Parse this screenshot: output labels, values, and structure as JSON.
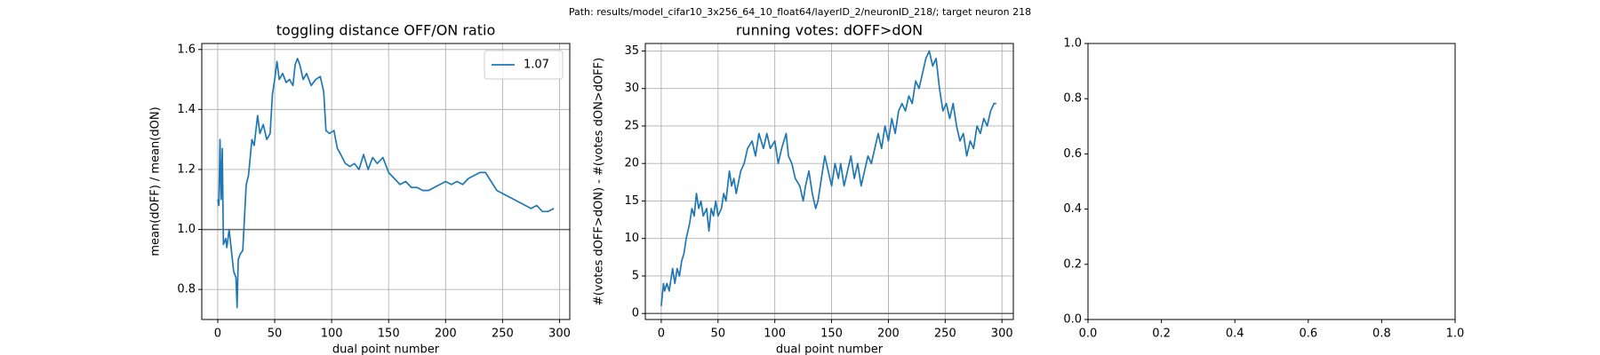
{
  "title": "Path: results/model_cifar10_3x256_64_10_float64/layerID_2/neuronID_218/; target neuron 218",
  "chart_data": [
    {
      "type": "line",
      "title": "toggling distance OFF/ON ratio",
      "xlabel": "dual point number",
      "ylabel": "mean(dOFF) / mean(dON)",
      "x": [
        0,
        1,
        2,
        3,
        4,
        5,
        7,
        8,
        10,
        12,
        14,
        16,
        17,
        18,
        20,
        22,
        25,
        27,
        30,
        32,
        35,
        37,
        40,
        43,
        46,
        48,
        50,
        52,
        54,
        57,
        60,
        63,
        66,
        68,
        70,
        72,
        75,
        78,
        82,
        86,
        90,
        93,
        95,
        98,
        102,
        105,
        108,
        112,
        116,
        120,
        124,
        128,
        132,
        136,
        140,
        145,
        150,
        155,
        160,
        165,
        170,
        175,
        180,
        185,
        190,
        195,
        200,
        205,
        210,
        215,
        220,
        225,
        230,
        235,
        240,
        245,
        250,
        255,
        260,
        265,
        270,
        275,
        280,
        285,
        290,
        295
      ],
      "series": [
        {
          "name": "1.07",
          "color": "#1f77b4",
          "values": [
            1.1,
            1.08,
            1.3,
            1.1,
            1.27,
            0.95,
            0.97,
            0.94,
            1.0,
            0.93,
            0.86,
            0.84,
            0.74,
            0.9,
            0.92,
            0.93,
            1.15,
            1.18,
            1.3,
            1.28,
            1.38,
            1.32,
            1.35,
            1.3,
            1.32,
            1.45,
            1.5,
            1.56,
            1.5,
            1.52,
            1.49,
            1.5,
            1.48,
            1.55,
            1.57,
            1.55,
            1.5,
            1.52,
            1.48,
            1.5,
            1.51,
            1.46,
            1.33,
            1.32,
            1.33,
            1.27,
            1.25,
            1.22,
            1.21,
            1.22,
            1.2,
            1.25,
            1.2,
            1.24,
            1.22,
            1.24,
            1.19,
            1.17,
            1.15,
            1.16,
            1.14,
            1.14,
            1.13,
            1.13,
            1.14,
            1.15,
            1.16,
            1.15,
            1.16,
            1.15,
            1.17,
            1.18,
            1.19,
            1.19,
            1.16,
            1.13,
            1.12,
            1.11,
            1.1,
            1.09,
            1.08,
            1.07,
            1.08,
            1.06,
            1.06,
            1.07
          ]
        }
      ],
      "xlim": [
        -14,
        309
      ],
      "xticks": [
        0,
        50,
        100,
        150,
        200,
        250,
        300
      ],
      "ylim": [
        0.7,
        1.62
      ],
      "yticks": [
        0.8,
        {
          "value": 1,
          "label": "1.0"
        },
        1.2,
        1.4,
        1.6
      ],
      "hline": 1,
      "grid": true,
      "legend": "upper right"
    },
    {
      "type": "line",
      "title": "running votes: dOFF>dON",
      "xlabel": "dual point number",
      "ylabel": "#(votes dOFF>dON) - #(votes dON>dOFF)",
      "x": [
        0,
        2,
        3,
        5,
        7,
        9,
        10,
        12,
        14,
        16,
        18,
        20,
        22,
        25,
        27,
        29,
        31,
        33,
        35,
        37,
        40,
        42,
        44,
        46,
        48,
        50,
        53,
        55,
        57,
        60,
        62,
        64,
        66,
        70,
        73,
        76,
        80,
        83,
        86,
        90,
        93,
        96,
        100,
        103,
        106,
        110,
        112,
        115,
        118,
        122,
        125,
        127,
        130,
        133,
        136,
        138,
        141,
        144,
        147,
        150,
        153,
        156,
        158,
        161,
        164,
        167,
        170,
        173,
        176,
        179,
        182,
        185,
        188,
        191,
        194,
        197,
        200,
        203,
        206,
        209,
        212,
        215,
        218,
        221,
        224,
        227,
        230,
        233,
        236,
        239,
        242,
        245,
        248,
        251,
        254,
        257,
        260,
        263,
        266,
        269,
        272,
        275,
        278,
        281,
        284,
        287,
        290,
        293,
        295
      ],
      "series": [
        {
          "color": "#1f77b4",
          "values": [
            1,
            4,
            3,
            4,
            3,
            5,
            6,
            4,
            6,
            5,
            7,
            8,
            10,
            12,
            14,
            13,
            16,
            14,
            15,
            13,
            14,
            11,
            14,
            13,
            15,
            13,
            14,
            16,
            15,
            19,
            17,
            18,
            16,
            19,
            20,
            22,
            23,
            21,
            24,
            22,
            24,
            22,
            23,
            20,
            22,
            24,
            21,
            20,
            18,
            17,
            15,
            17,
            19,
            16,
            14,
            15,
            18,
            21,
            19,
            17,
            20,
            18,
            20,
            17,
            19,
            21,
            18,
            20,
            17,
            19,
            21,
            20,
            22,
            24,
            22,
            25,
            23,
            26,
            24,
            27,
            28,
            27,
            29,
            28,
            31,
            30,
            32,
            34,
            35,
            33,
            34,
            30,
            27,
            28,
            26,
            28,
            25,
            23,
            24,
            21,
            23,
            22,
            25,
            24,
            26,
            25,
            27,
            28,
            28
          ]
        }
      ],
      "xlim": [
        -14,
        310
      ],
      "xticks": [
        0,
        50,
        100,
        150,
        200,
        250,
        300
      ],
      "ylim": [
        -0.8,
        36
      ],
      "yticks": [
        0,
        5,
        10,
        15,
        20,
        25,
        30,
        35
      ],
      "hline": 0,
      "grid": true
    },
    {
      "type": "line",
      "series": [],
      "xlim": [
        0,
        1
      ],
      "xticks": [
        {
          "value": 0,
          "label": "0.0"
        },
        0.2,
        0.4,
        0.6,
        0.8,
        {
          "value": 1,
          "label": "1.0"
        }
      ],
      "ylim": [
        0,
        1
      ],
      "yticks": [
        {
          "value": 0,
          "label": "0.0"
        },
        0.2,
        0.4,
        0.6,
        0.8,
        {
          "value": 1,
          "label": "1.0"
        }
      ],
      "grid": false
    }
  ]
}
